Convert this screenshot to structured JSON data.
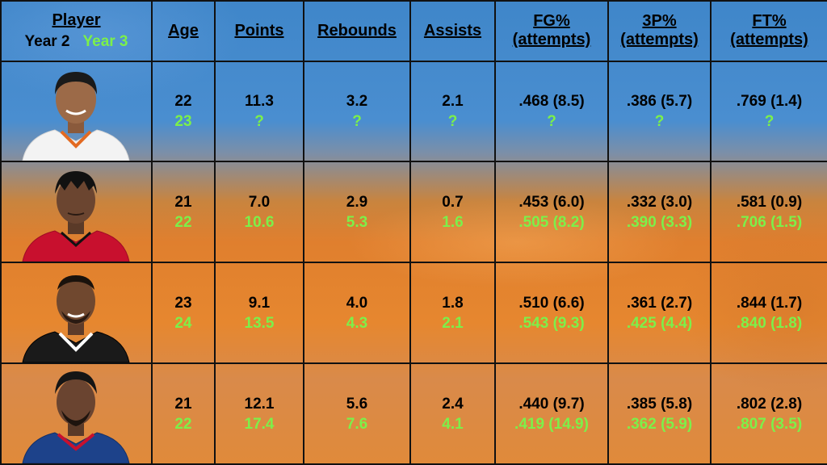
{
  "header": {
    "player_label": "Player",
    "legend_year2": "Year 2",
    "legend_year3": "Year 3",
    "columns": [
      {
        "line1": "Age",
        "line2": ""
      },
      {
        "line1": "Points",
        "line2": ""
      },
      {
        "line1": "Rebounds",
        "line2": ""
      },
      {
        "line1": "Assists",
        "line2": ""
      },
      {
        "line1": "FG%",
        "line2": "(attempts)"
      },
      {
        "line1": "3P%",
        "line2": "(attempts)"
      },
      {
        "line1": "FT%",
        "line2": "(attempts)"
      }
    ]
  },
  "colors": {
    "year2_text": "#000000",
    "year3_text": "#7CF04A",
    "grid_lines": "#111111",
    "blue_bg": "#4a8ed0",
    "orange_bg": "#e6872f"
  },
  "players": [
    {
      "photo_icon": "player-headshot-white-jersey-icon",
      "jersey_color": "#f3f3f3",
      "year2": {
        "age": "22",
        "points": "11.3",
        "rebounds": "3.2",
        "assists": "2.1",
        "fg": ".468 (8.5)",
        "three": ".386 (5.7)",
        "ft": ".769 (1.4)"
      },
      "year3": {
        "age": "23",
        "points": "?",
        "rebounds": "?",
        "assists": "?",
        "fg": "?",
        "three": "?",
        "ft": "?"
      }
    },
    {
      "photo_icon": "player-headshot-red-jersey-icon",
      "jersey_color": "#c8102e",
      "year2": {
        "age": "21",
        "points": "7.0",
        "rebounds": "2.9",
        "assists": "0.7",
        "fg": ".453 (6.0)",
        "three": ".332 (3.0)",
        "ft": ".581 (0.9)"
      },
      "year3": {
        "age": "22",
        "points": "10.6",
        "rebounds": "5.3",
        "assists": "1.6",
        "fg": ".505 (8.2)",
        "three": ".390 (3.3)",
        "ft": ".706 (1.5)"
      }
    },
    {
      "photo_icon": "player-headshot-black-jersey-icon",
      "jersey_color": "#1a1a1a",
      "year2": {
        "age": "23",
        "points": "9.1",
        "rebounds": "4.0",
        "assists": "1.8",
        "fg": ".510 (6.6)",
        "three": ".361 (2.7)",
        "ft": ".844 (1.7)"
      },
      "year3": {
        "age": "24",
        "points": "13.5",
        "rebounds": "4.3",
        "assists": "2.1",
        "fg": ".543 (9.3)",
        "three": ".425 (4.4)",
        "ft": ".840 (1.8)"
      }
    },
    {
      "photo_icon": "player-headshot-blue-jersey-icon",
      "jersey_color": "#1d428a",
      "year2": {
        "age": "21",
        "points": "12.1",
        "rebounds": "5.6",
        "assists": "2.4",
        "fg": ".440 (9.7)",
        "three": ".385 (5.8)",
        "ft": ".802 (2.8)"
      },
      "year3": {
        "age": "22",
        "points": "17.4",
        "rebounds": "7.6",
        "assists": "4.1",
        "fg": ".419 (14.9)",
        "three": ".362 (5.9)",
        "ft": ".807 (3.5)"
      }
    }
  ]
}
